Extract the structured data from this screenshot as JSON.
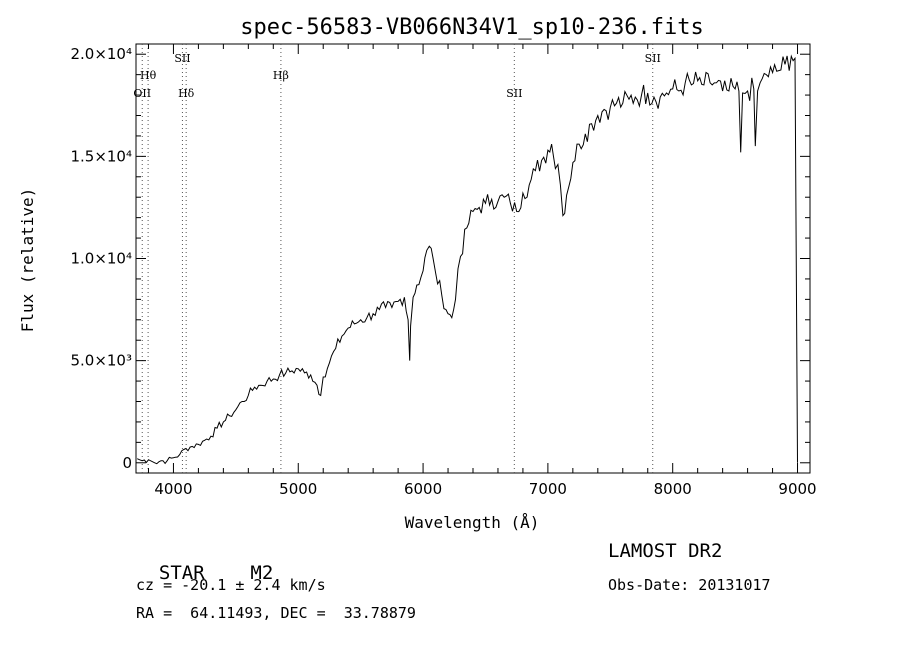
{
  "chart_data": {
    "type": "line",
    "title": "spec-56583-VB066N34V1_sp10-236.fits",
    "xlabel": "Wavelength (Å)",
    "ylabel": "Flux (relative)",
    "xlim": [
      3700,
      9100
    ],
    "ylim": [
      -500,
      20500
    ],
    "xticks": [
      {
        "value": 4000,
        "label": "4000"
      },
      {
        "value": 5000,
        "label": "5000"
      },
      {
        "value": 6000,
        "label": "6000"
      },
      {
        "value": 7000,
        "label": "7000"
      },
      {
        "value": 8000,
        "label": "8000"
      },
      {
        "value": 9000,
        "label": "9000"
      }
    ],
    "yticks": [
      {
        "value": 0,
        "label": "0"
      },
      {
        "value": 5000,
        "label": "5.0×10³"
      },
      {
        "value": 10000,
        "label": "1.0×10⁴"
      },
      {
        "value": 15000,
        "label": "1.5×10⁴"
      },
      {
        "value": 20000,
        "label": "2.0×10⁴"
      }
    ],
    "grid": false,
    "series": [
      {
        "x": [
          3710,
          3750,
          3800,
          3850,
          3900,
          3950,
          4000,
          4050,
          4100,
          4150,
          4200,
          4250,
          4300,
          4350,
          4400,
          4450,
          4500,
          4550,
          4600,
          4650,
          4700,
          4750,
          4800,
          4850,
          4900,
          4950,
          5000,
          5050,
          5100,
          5150,
          5180,
          5200,
          5250,
          5300,
          5350,
          5400,
          5450,
          5500,
          5550,
          5600,
          5650,
          5700,
          5750,
          5800,
          5850,
          5880,
          5893,
          5900,
          5920,
          5950,
          6000,
          6030,
          6050,
          6080,
          6100,
          6150,
          6200,
          6230,
          6260,
          6280,
          6300,
          6350,
          6400,
          6450,
          6500,
          6550,
          6600,
          6650,
          6700,
          6750,
          6800,
          6850,
          6900,
          6950,
          7000,
          7030,
          7060,
          7080,
          7100,
          7120,
          7150,
          7200,
          7250,
          7300,
          7350,
          7400,
          7450,
          7500,
          7550,
          7600,
          7650,
          7700,
          7750,
          7800,
          7850,
          7900,
          7950,
          8000,
          8050,
          8100,
          8150,
          8200,
          8250,
          8300,
          8350,
          8400,
          8450,
          8500,
          8530,
          8545,
          8560,
          8600,
          8650,
          8662,
          8680,
          8700,
          8750,
          8800,
          8850,
          8900,
          8950,
          8980,
          9000
        ],
        "y": [
          200,
          100,
          150,
          0,
          100,
          100,
          250,
          400,
          700,
          800,
          900,
          1100,
          1300,
          1700,
          2000,
          2300,
          2600,
          3000,
          3300,
          3700,
          3800,
          4000,
          4100,
          4300,
          4400,
          4500,
          4600,
          4400,
          4300,
          3800,
          3300,
          4200,
          4900,
          5600,
          6200,
          6600,
          6800,
          7000,
          7100,
          7300,
          7500,
          7600,
          7600,
          7900,
          8100,
          7000,
          5000,
          6700,
          8100,
          8700,
          9400,
          10400,
          10600,
          10000,
          9300,
          8200,
          7300,
          7100,
          8000,
          9500,
          10100,
          11500,
          12300,
          12500,
          12700,
          12900,
          12800,
          13000,
          12700,
          12300,
          13200,
          13600,
          14300,
          14800,
          15300,
          15600,
          14400,
          14600,
          13600,
          12100,
          13100,
          14700,
          15600,
          16100,
          16600,
          17000,
          17300,
          17400,
          17600,
          17600,
          17800,
          17900,
          18000,
          18100,
          17900,
          17900,
          18100,
          18300,
          18200,
          18600,
          18500,
          18700,
          18500,
          18600,
          18600,
          18200,
          18200,
          18300,
          18200,
          15200,
          18100,
          18200,
          18300,
          15500,
          18200,
          18600,
          19000,
          19100,
          19200,
          19500,
          19900,
          19800,
          0
        ]
      }
    ],
    "annotations": [
      {
        "x": 3750,
        "label": "OII",
        "row": 2
      },
      {
        "x": 3797,
        "label": "Hθ",
        "row": 1
      },
      {
        "x": 4102,
        "label": "Hδ",
        "row": 2
      },
      {
        "x": 4072,
        "label": "SII",
        "row": 0
      },
      {
        "x": 4861,
        "label": "Hβ",
        "row": 1
      },
      {
        "x": 6731,
        "label": "SII",
        "row": 2
      },
      {
        "x": 7840,
        "label": "SII",
        "row": 0
      }
    ]
  },
  "info": {
    "class": "STAR",
    "subclass": "M2",
    "survey": "LAMOST DR2",
    "cz": "cz = -20.1 ± 2.4 km/s",
    "obs_date": "Obs-Date: 20131017",
    "radec": "RA =  64.11493, DEC =  33.78879"
  }
}
